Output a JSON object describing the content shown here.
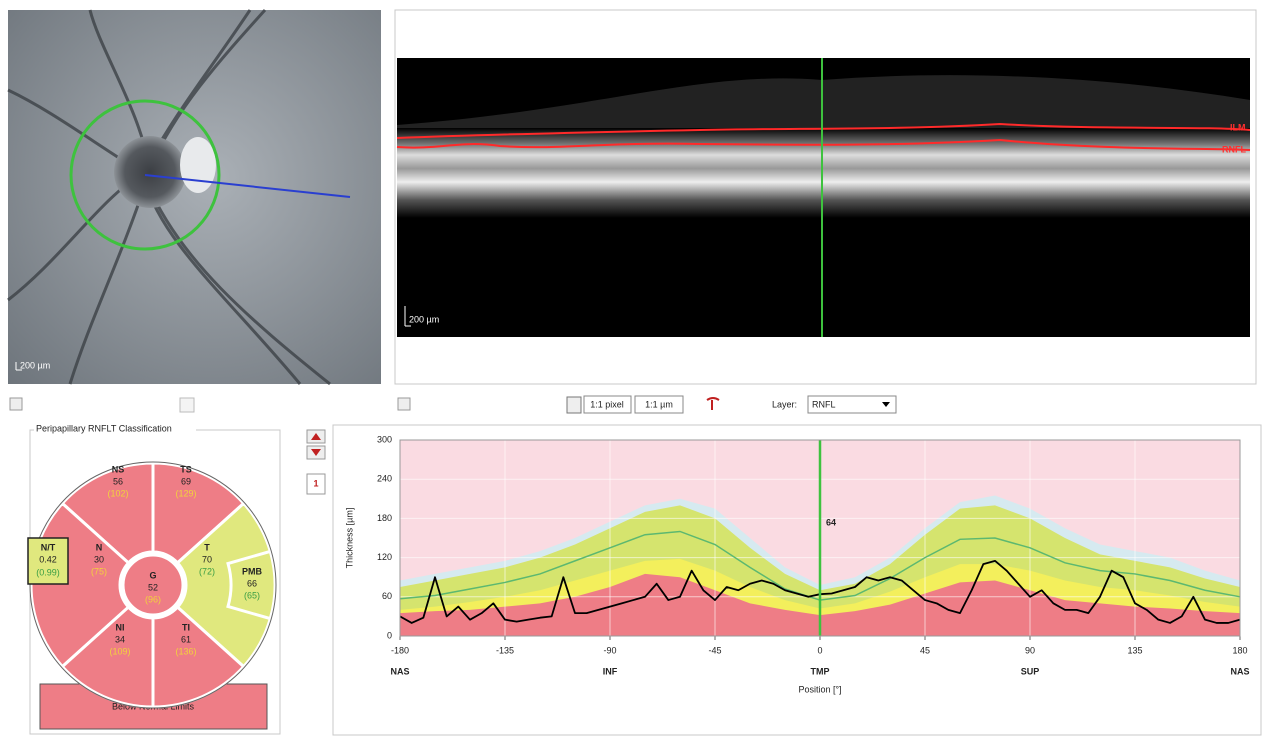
{
  "fundus": {
    "scale_label": "200 µm"
  },
  "bscan": {
    "scale_label": "200 µm",
    "layer_labels": [
      "ILM",
      "RNFL"
    ]
  },
  "toolbar": {
    "zoom_pixel": "1:1 pixel",
    "zoom_um": "1:1 µm",
    "layer_label": "Layer:",
    "layer_value": "RNFL"
  },
  "classification": {
    "title": "Peripapillary RNFLT Classification",
    "sectors": [
      {
        "name": "NS",
        "value": 56,
        "normal": "(102)"
      },
      {
        "name": "TS",
        "value": 69,
        "normal": "(129)"
      },
      {
        "name": "N",
        "value": 30,
        "normal": "(75)"
      },
      {
        "name": "G",
        "value": 52,
        "normal": "(96)"
      },
      {
        "name": "T",
        "value": 70,
        "normal": "(72)"
      },
      {
        "name": "PMB",
        "value": 66,
        "normal": "(65)"
      },
      {
        "name": "NI",
        "value": 34,
        "normal": "(109)"
      },
      {
        "name": "TI",
        "value": 61,
        "normal": "(136)"
      }
    ],
    "ratio": {
      "name": "N/T",
      "value": 0.42,
      "normal": "(0.99)"
    },
    "result": "Below Normal Limits"
  },
  "profile_number": 1,
  "chart_data": {
    "type": "line",
    "ylabel": "Thickness [µm]",
    "xlabel": "Position [°]",
    "xlim": [
      -180,
      180
    ],
    "ylim": [
      0,
      300
    ],
    "xticks": [
      -180,
      -135,
      -90,
      -45,
      0,
      45,
      90,
      135,
      180
    ],
    "yticks": [
      0,
      60,
      120,
      180,
      240,
      300
    ],
    "grid": true,
    "x_regions": [
      {
        "value": -180,
        "label": "NAS"
      },
      {
        "value": -90,
        "label": "INF"
      },
      {
        "value": 0,
        "label": "TMP"
      },
      {
        "value": 90,
        "label": "SUP"
      },
      {
        "value": 180,
        "label": "NAS"
      }
    ],
    "cursor": {
      "x": 0,
      "value": 64
    },
    "normative": {
      "x": [
        -180,
        -165,
        -150,
        -135,
        -120,
        -105,
        -90,
        -75,
        -60,
        -45,
        -30,
        -15,
        0,
        15,
        30,
        45,
        60,
        75,
        90,
        105,
        120,
        135,
        150,
        165,
        180
      ],
      "bands": [
        {
          "color": "#d6eaf0",
          "values": [
            85,
            95,
            105,
            115,
            130,
            150,
            175,
            200,
            210,
            195,
            150,
            105,
            78,
            90,
            120,
            165,
            205,
            215,
            195,
            165,
            140,
            130,
            120,
            100,
            85
          ]
        },
        {
          "color": "#d5e46e",
          "values": [
            75,
            85,
            95,
            105,
            120,
            140,
            165,
            190,
            200,
            180,
            135,
            95,
            70,
            80,
            110,
            155,
            195,
            200,
            180,
            150,
            125,
            115,
            105,
            88,
            75
          ]
        },
        {
          "color": "#f3ef5c",
          "values": [
            40,
            45,
            52,
            60,
            70,
            85,
            100,
            115,
            118,
            100,
            75,
            55,
            42,
            50,
            68,
            90,
            110,
            110,
            100,
            85,
            75,
            70,
            62,
            52,
            45
          ]
        },
        {
          "color": "#ee7d86",
          "values": [
            35,
            38,
            40,
            45,
            50,
            60,
            75,
            95,
            90,
            70,
            50,
            40,
            32,
            38,
            48,
            65,
            82,
            85,
            70,
            55,
            50,
            45,
            42,
            38,
            35
          ]
        }
      ],
      "mean": {
        "color": "#5cb870",
        "values": [
          57,
          62,
          72,
          82,
          95,
          115,
          135,
          155,
          160,
          140,
          105,
          72,
          55,
          62,
          88,
          120,
          148,
          150,
          135,
          112,
          100,
          95,
          85,
          70,
          60
        ]
      }
    },
    "series": [
      {
        "color": "#000000",
        "x": [
          -180,
          -175,
          -170,
          -165,
          -160,
          -155,
          -150,
          -145,
          -140,
          -135,
          -130,
          -125,
          -120,
          -115,
          -110,
          -105,
          -100,
          -95,
          -90,
          -85,
          -80,
          -75,
          -70,
          -65,
          -60,
          -55,
          -50,
          -45,
          -40,
          -35,
          -30,
          -25,
          -20,
          -15,
          -10,
          -5,
          0,
          5,
          10,
          15,
          20,
          25,
          30,
          35,
          40,
          45,
          50,
          55,
          60,
          65,
          70,
          75,
          80,
          85,
          90,
          95,
          100,
          105,
          110,
          115,
          120,
          125,
          130,
          135,
          140,
          145,
          150,
          155,
          160,
          165,
          170,
          175,
          180
        ],
        "values": [
          30,
          20,
          28,
          90,
          30,
          45,
          25,
          35,
          50,
          25,
          22,
          25,
          28,
          30,
          90,
          35,
          35,
          40,
          45,
          50,
          55,
          60,
          80,
          55,
          60,
          100,
          70,
          55,
          75,
          70,
          80,
          85,
          80,
          70,
          65,
          60,
          64,
          65,
          70,
          75,
          90,
          85,
          90,
          85,
          70,
          55,
          50,
          40,
          35,
          70,
          110,
          115,
          100,
          80,
          60,
          70,
          50,
          40,
          40,
          35,
          60,
          100,
          90,
          50,
          40,
          25,
          20,
          30,
          60,
          25,
          20,
          20,
          25
        ]
      }
    ]
  }
}
